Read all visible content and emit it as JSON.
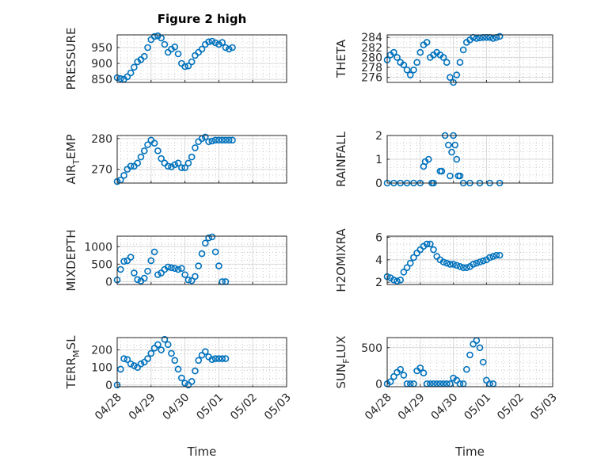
{
  "figure_title": "Figure 2 high",
  "x_axis": {
    "label": "Time",
    "ticks": [
      "04/28",
      "04/29",
      "04/30",
      "05/01",
      "05/02",
      "05/03"
    ]
  },
  "colors": {
    "marker": "#0072BD",
    "axis": "#262626"
  },
  "chart_data": [
    {
      "type": "scatter",
      "title": "Figure 2 high",
      "ylabel": "PRESSURE",
      "ylim": [
        840,
        990
      ],
      "yticks": [
        "850",
        "900",
        "950"
      ],
      "xlim": [
        0,
        5
      ],
      "grid": true,
      "x": [
        0,
        0.1,
        0.2,
        0.3,
        0.4,
        0.5,
        0.6,
        0.7,
        0.8,
        0.9,
        1.0,
        1.1,
        1.2,
        1.3,
        1.4,
        1.5,
        1.6,
        1.7,
        1.8,
        1.9,
        2.0,
        2.1,
        2.2,
        2.3,
        2.4,
        2.5,
        2.6,
        2.7,
        2.8,
        2.9,
        3.0,
        3.1,
        3.2,
        3.3,
        3.4
      ],
      "y": [
        855,
        852,
        850,
        858,
        870,
        888,
        905,
        912,
        922,
        950,
        975,
        985,
        987,
        980,
        960,
        935,
        945,
        952,
        930,
        900,
        890,
        892,
        905,
        925,
        935,
        945,
        960,
        968,
        970,
        965,
        960,
        966,
        950,
        945,
        950
      ]
    },
    {
      "type": "scatter",
      "ylabel": "THETA",
      "ylim": [
        275,
        284.5
      ],
      "yticks": [
        "276",
        "278",
        "280",
        "282",
        "284"
      ],
      "xlim": [
        0,
        5
      ],
      "grid": true,
      "x": [
        0,
        0.1,
        0.2,
        0.3,
        0.4,
        0.5,
        0.6,
        0.7,
        0.8,
        0.9,
        1.0,
        1.1,
        1.2,
        1.3,
        1.4,
        1.5,
        1.6,
        1.7,
        1.8,
        1.9,
        2.0,
        2.1,
        2.2,
        2.3,
        2.4,
        2.5,
        2.6,
        2.7,
        2.8,
        2.9,
        3.0,
        3.1,
        3.2,
        3.3,
        3.4
      ],
      "y": [
        279.5,
        280.5,
        281,
        280,
        279,
        278.5,
        277.5,
        276.5,
        277.5,
        279,
        281,
        282.5,
        283,
        280,
        280.5,
        281,
        280.5,
        280,
        279,
        276,
        275,
        276.5,
        279,
        281.5,
        283,
        283.5,
        284,
        283.8,
        283.9,
        284,
        284,
        284,
        283.8,
        284,
        284.2
      ]
    },
    {
      "type": "scatter",
      "ylabel": "AIR_TEMP",
      "ylim": [
        265.5,
        281
      ],
      "yticks": [
        "270",
        "280"
      ],
      "xlim": [
        0,
        5
      ],
      "grid": true,
      "x": [
        0,
        0.1,
        0.2,
        0.3,
        0.4,
        0.5,
        0.6,
        0.7,
        0.8,
        0.9,
        1.0,
        1.1,
        1.2,
        1.3,
        1.4,
        1.5,
        1.6,
        1.7,
        1.8,
        1.9,
        2.0,
        2.1,
        2.2,
        2.3,
        2.4,
        2.5,
        2.6,
        2.7,
        2.8,
        2.9,
        3.0,
        3.1,
        3.2,
        3.3,
        3.4
      ],
      "y": [
        266,
        266.5,
        268,
        270,
        271,
        271,
        272,
        274,
        276,
        278,
        279.5,
        278.5,
        276,
        273.5,
        272,
        271,
        270.8,
        271.5,
        272,
        270.5,
        270.5,
        272,
        274,
        277,
        279,
        280,
        280.5,
        279,
        279.2,
        279.5,
        279.5,
        279.5,
        279.5,
        279.5,
        279.5
      ]
    },
    {
      "type": "scatter",
      "ylabel": "RAINFALL",
      "ylim": [
        0,
        2
      ],
      "yticks": [
        "0",
        "1",
        "2"
      ],
      "xlim": [
        0,
        5
      ],
      "grid": true,
      "x": [
        0,
        0.2,
        0.4,
        0.6,
        0.8,
        1.0,
        1.1,
        1.15,
        1.25,
        1.35,
        1.4,
        1.6,
        1.65,
        1.75,
        1.85,
        1.9,
        1.95,
        2.0,
        2.05,
        2.1,
        2.15,
        2.2,
        2.3,
        2.5,
        2.8,
        3.1,
        3.4
      ],
      "y": [
        0,
        0,
        0,
        0,
        0,
        0,
        0.7,
        0.9,
        1.0,
        0,
        0,
        0.5,
        0.5,
        2.0,
        1.6,
        0.3,
        1.3,
        2.0,
        1.6,
        1.0,
        0.3,
        0.3,
        0,
        0,
        0,
        0,
        0
      ]
    },
    {
      "type": "scatter",
      "ylabel": "MIXDEPTH",
      "ylim": [
        -80,
        1300
      ],
      "yticks": [
        "0",
        "500",
        "1000"
      ],
      "xlim": [
        0,
        5
      ],
      "grid": true,
      "x": [
        0,
        0.1,
        0.2,
        0.3,
        0.4,
        0.5,
        0.6,
        0.7,
        0.8,
        0.9,
        1.0,
        1.1,
        1.2,
        1.3,
        1.4,
        1.5,
        1.6,
        1.7,
        1.8,
        1.9,
        2.0,
        2.1,
        2.2,
        2.3,
        2.4,
        2.5,
        2.6,
        2.7,
        2.8,
        2.9,
        3.0,
        3.1,
        3.2
      ],
      "y": [
        50,
        350,
        580,
        600,
        700,
        250,
        60,
        20,
        100,
        300,
        600,
        850,
        200,
        250,
        350,
        420,
        400,
        380,
        350,
        380,
        200,
        50,
        30,
        150,
        450,
        800,
        1100,
        1250,
        1280,
        850,
        450,
        0,
        0
      ]
    },
    {
      "type": "scatter",
      "ylabel": "H2OMIXRA",
      "ylim": [
        1.8,
        6.1
      ],
      "yticks": [
        "2",
        "4",
        "6"
      ],
      "xlim": [
        0,
        5
      ],
      "grid": true,
      "x": [
        0,
        0.1,
        0.2,
        0.3,
        0.4,
        0.5,
        0.6,
        0.7,
        0.8,
        0.9,
        1.0,
        1.1,
        1.2,
        1.3,
        1.4,
        1.5,
        1.6,
        1.7,
        1.8,
        1.9,
        2.0,
        2.1,
        2.2,
        2.3,
        2.4,
        2.5,
        2.6,
        2.7,
        2.8,
        2.9,
        3.0,
        3.1,
        3.2,
        3.3,
        3.4
      ],
      "y": [
        2.5,
        2.4,
        2.2,
        2.1,
        2.2,
        2.9,
        3.3,
        3.7,
        4.2,
        4.6,
        4.9,
        5.2,
        5.4,
        5.4,
        4.9,
        4.3,
        4.0,
        3.8,
        3.7,
        3.6,
        3.6,
        3.5,
        3.4,
        3.3,
        3.3,
        3.4,
        3.6,
        3.7,
        3.8,
        3.9,
        4.0,
        4.2,
        4.3,
        4.4,
        4.4
      ]
    },
    {
      "type": "scatter",
      "ylabel": "TERR_MSL",
      "ylim": [
        -10,
        270
      ],
      "yticks": [
        "0",
        "100",
        "200"
      ],
      "xlim": [
        0,
        5
      ],
      "grid": true,
      "x": [
        0,
        0.1,
        0.2,
        0.3,
        0.4,
        0.5,
        0.6,
        0.7,
        0.8,
        0.9,
        1.0,
        1.1,
        1.2,
        1.3,
        1.4,
        1.5,
        1.6,
        1.7,
        1.8,
        1.9,
        2.0,
        2.1,
        2.2,
        2.3,
        2.4,
        2.5,
        2.6,
        2.7,
        2.8,
        2.9,
        3.0,
        3.1,
        3.2
      ],
      "y": [
        0,
        90,
        150,
        145,
        120,
        110,
        100,
        120,
        130,
        150,
        180,
        210,
        230,
        200,
        260,
        230,
        180,
        140,
        90,
        40,
        10,
        0,
        20,
        80,
        140,
        170,
        190,
        160,
        145,
        150,
        150,
        150,
        150
      ]
    },
    {
      "type": "scatter",
      "ylabel": "SUN_FLUX",
      "ylim": [
        -40,
        640
      ],
      "yticks": [
        "0",
        "500"
      ],
      "xlim": [
        0,
        5
      ],
      "grid": true,
      "x": [
        0,
        0.1,
        0.2,
        0.3,
        0.4,
        0.5,
        0.6,
        0.7,
        0.8,
        0.9,
        1.0,
        1.1,
        1.2,
        1.3,
        1.4,
        1.5,
        1.6,
        1.7,
        1.8,
        1.9,
        2.0,
        2.1,
        2.2,
        2.3,
        2.4,
        2.5,
        2.6,
        2.7,
        2.8,
        2.9,
        3.0,
        3.1,
        3.2
      ],
      "y": [
        0,
        30,
        100,
        160,
        200,
        120,
        0,
        0,
        0,
        180,
        220,
        150,
        0,
        0,
        0,
        0,
        0,
        0,
        0,
        0,
        80,
        50,
        0,
        0,
        200,
        400,
        550,
        600,
        500,
        300,
        50,
        0,
        0
      ]
    }
  ]
}
